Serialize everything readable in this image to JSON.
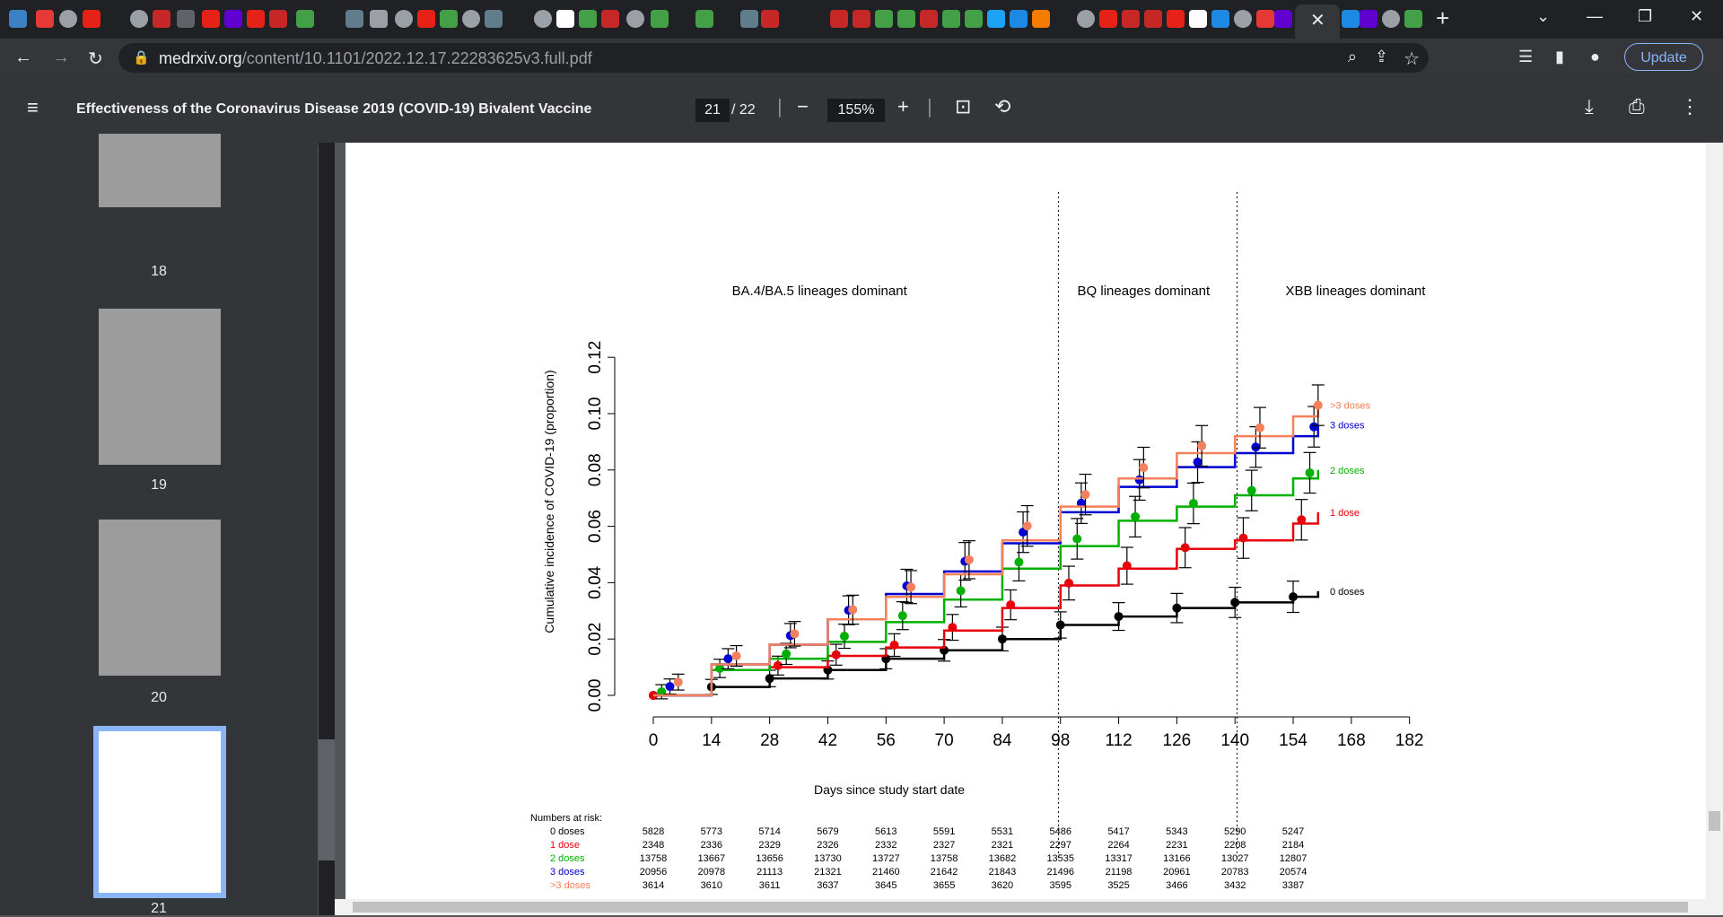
{
  "browser": {
    "url_host": "medrxiv.org",
    "url_path": "/content/10.1101/2022.12.17.22283625v3.full.pdf",
    "update_label": "Update"
  },
  "pdf": {
    "title": "Effectiveness of the Coronavirus Disease 2019 (COVID-19) Bivalent Vaccine",
    "page_current": "21",
    "page_total": "/ 22",
    "zoom": "155%",
    "thumbnails": [
      "18",
      "19",
      "20",
      "21"
    ]
  },
  "chart_data": {
    "type": "line",
    "xlabel": "Days since study start date",
    "ylabel": "Cumulative incidence of COVID-19 (proportion)",
    "x_ticks": [
      0,
      14,
      28,
      42,
      56,
      70,
      84,
      98,
      112,
      126,
      140,
      154,
      168,
      182
    ],
    "y_ticks": [
      "0.00",
      "0.02",
      "0.04",
      "0.06",
      "0.08",
      "0.10",
      "0.12"
    ],
    "xlim": [
      0,
      182
    ],
    "ylim": [
      0,
      0.12
    ],
    "periods": [
      {
        "label": "BA.4/BA.5 lineages dominant",
        "x_center": 40
      },
      {
        "label": "BQ lineages dominant",
        "x_center": 118
      },
      {
        "label": "XBB lineages dominant",
        "x_center": 169
      }
    ],
    "dividers": [
      97.5,
      140.5
    ],
    "series": [
      {
        "name": "0 doses",
        "color": "#000000",
        "x": [
          0,
          14,
          28,
          42,
          56,
          70,
          84,
          98,
          112,
          126,
          140,
          154,
          160
        ],
        "y": [
          0,
          0.003,
          0.006,
          0.009,
          0.013,
          0.016,
          0.02,
          0.025,
          0.028,
          0.031,
          0.033,
          0.035,
          0.037
        ],
        "markers_x": [
          0,
          14,
          28,
          42,
          56,
          70,
          84,
          98,
          112,
          126,
          140,
          154
        ]
      },
      {
        "name": "1 dose",
        "color": "#e8000b",
        "x": [
          0,
          14,
          28,
          42,
          56,
          70,
          84,
          98,
          112,
          126,
          140,
          154,
          160
        ],
        "y": [
          0,
          0.009,
          0.01,
          0.014,
          0.017,
          0.023,
          0.031,
          0.039,
          0.045,
          0.052,
          0.055,
          0.061,
          0.065
        ],
        "markers_x": [
          0,
          30,
          44,
          58,
          72,
          86,
          100,
          114,
          128,
          142,
          156
        ]
      },
      {
        "name": "2 doses",
        "color": "#00b000",
        "x": [
          0,
          14,
          28,
          42,
          56,
          70,
          84,
          98,
          112,
          126,
          140,
          154,
          160
        ],
        "y": [
          0,
          0.009,
          0.013,
          0.019,
          0.026,
          0.034,
          0.045,
          0.053,
          0.062,
          0.067,
          0.071,
          0.077,
          0.08
        ],
        "markers_x": [
          2,
          16,
          32,
          46,
          60,
          74,
          88,
          102,
          116,
          130,
          144,
          158
        ]
      },
      {
        "name": "3 doses",
        "color": "#0000d0",
        "x": [
          0,
          14,
          28,
          42,
          56,
          70,
          84,
          98,
          112,
          126,
          140,
          154,
          160
        ],
        "y": [
          0,
          0.011,
          0.018,
          0.027,
          0.036,
          0.044,
          0.054,
          0.065,
          0.074,
          0.081,
          0.086,
          0.092,
          0.096
        ],
        "markers_x": [
          4,
          18,
          33,
          47,
          61,
          75,
          89,
          103,
          117,
          131,
          145,
          159
        ]
      },
      {
        "name": ">3 doses",
        "color": "#f4805c",
        "x": [
          0,
          14,
          28,
          42,
          56,
          70,
          84,
          98,
          112,
          126,
          140,
          154,
          160
        ],
        "y": [
          0,
          0.011,
          0.018,
          0.027,
          0.035,
          0.043,
          0.055,
          0.067,
          0.077,
          0.086,
          0.092,
          0.099,
          0.103
        ],
        "markers_x": [
          6,
          20,
          34,
          48,
          62,
          76,
          90,
          104,
          118,
          132,
          146,
          160
        ]
      }
    ],
    "risk_table": {
      "title": "Numbers at risk:",
      "columns_x": [
        0,
        14,
        28,
        42,
        56,
        70,
        84,
        98,
        112,
        126,
        140,
        154
      ],
      "rows": [
        {
          "label": "0 doses",
          "values": [
            "5828",
            "5773",
            "5714",
            "5679",
            "5613",
            "5591",
            "5531",
            "5486",
            "5417",
            "5343",
            "5290",
            "5247"
          ]
        },
        {
          "label": "1 dose",
          "values": [
            "2348",
            "2336",
            "2329",
            "2326",
            "2332",
            "2327",
            "2321",
            "2297",
            "2264",
            "2231",
            "2208",
            "2184"
          ]
        },
        {
          "label": "2 doses",
          "values": [
            "13758",
            "13667",
            "13656",
            "13730",
            "13727",
            "13758",
            "13682",
            "13535",
            "13317",
            "13166",
            "13027",
            "12807"
          ]
        },
        {
          "label": "3 doses",
          "values": [
            "20956",
            "20978",
            "21113",
            "21321",
            "21460",
            "21642",
            "21843",
            "21496",
            "21198",
            "20961",
            "20783",
            "20574"
          ]
        },
        {
          "label": ">3 doses",
          "values": [
            "3614",
            "3610",
            "3611",
            "3637",
            "3645",
            "3655",
            "3620",
            "3595",
            "3525",
            "3466",
            "3432",
            "3387"
          ]
        }
      ]
    }
  }
}
